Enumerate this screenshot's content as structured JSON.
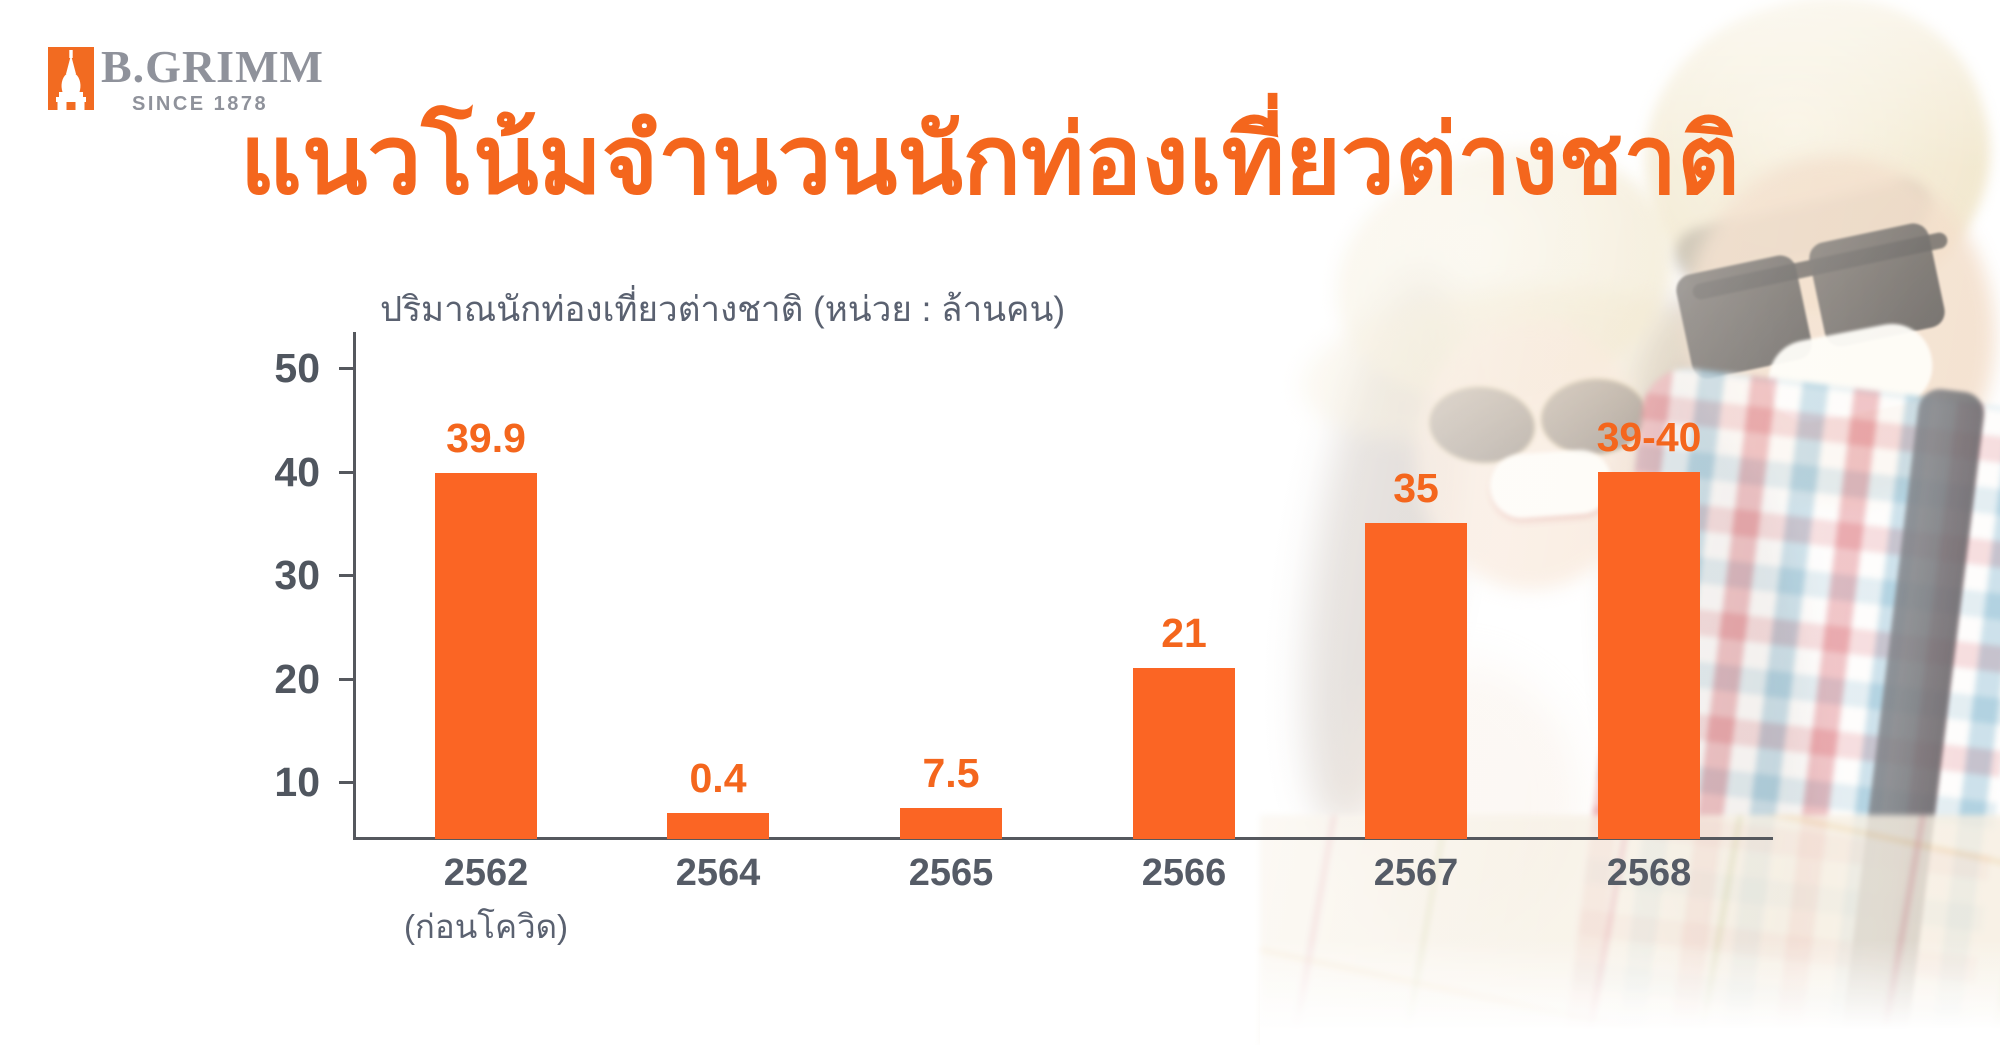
{
  "logo": {
    "brand": "B.GRIMM",
    "tagline": "SINCE 1878",
    "mark": "pagoda-icon"
  },
  "title": "แนวโน้มจำนวนนักท่องเที่ยวต่างชาติ",
  "chart_data": {
    "type": "bar",
    "title": "ปริมาณนักท่องเที่ยวต่างชาติ (หน่วย : ล้านคน)",
    "unit_note": "หน่วย : ล้านคน",
    "categories": [
      "2562",
      "2564",
      "2565",
      "2566",
      "2567",
      "2568"
    ],
    "category_notes": [
      "(ก่อนโควิด)",
      "",
      "",
      "",
      "",
      ""
    ],
    "values": [
      39.9,
      0.4,
      7.5,
      21,
      35,
      40
    ],
    "value_labels": [
      "39.9",
      "0.4",
      "7.5",
      "21",
      "35",
      "39-40"
    ],
    "yticks": [
      10,
      20,
      30,
      40,
      50
    ],
    "ylim": [
      0,
      53
    ],
    "grid": false,
    "legend": false,
    "bar_color": "#FB6524"
  },
  "colors": {
    "orange_bar": "#FB6524",
    "orange_title": "#F4661D",
    "orange_brand": "#F26B21",
    "slate": "#5A6170",
    "slate_dark": "#555B66",
    "axis": "#55585E",
    "axis_text": "#50565F",
    "logo_gray": "#8F929B"
  }
}
